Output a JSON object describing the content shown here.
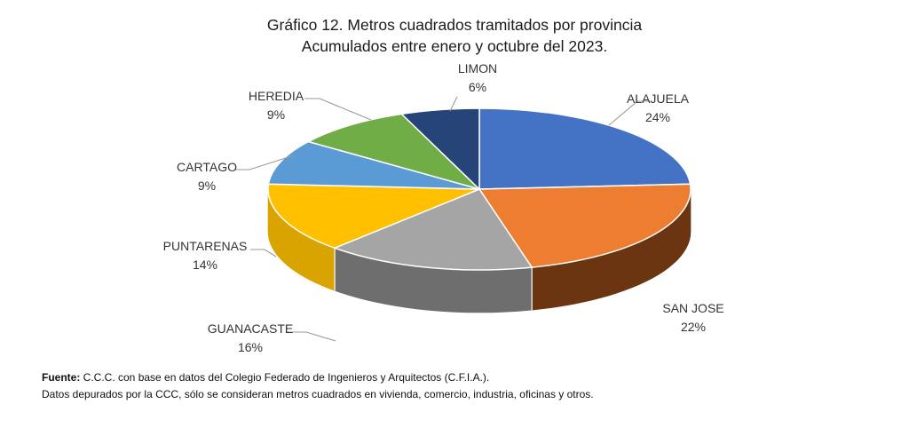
{
  "chart_data": {
    "type": "pie",
    "title": "Gráfico 12. Metros cuadrados tramitados por provincia",
    "subtitle": "Acumulados entre enero y octubre del 2023.",
    "slices": [
      {
        "label": "ALAJUELA",
        "value": 24,
        "display": "24%",
        "color": "#4472C4",
        "side": "#2E5491"
      },
      {
        "label": "SAN JOSE",
        "value": 22,
        "display": "22%",
        "color": "#ED7D31",
        "side": "#6B3512"
      },
      {
        "label": "GUANACASTE",
        "value": 16,
        "display": "16%",
        "color": "#A5A5A5",
        "side": "#6E6E6E"
      },
      {
        "label": "PUNTARENAS",
        "value": 14,
        "display": "14%",
        "color": "#FFC000",
        "side": "#D9A400"
      },
      {
        "label": "CARTAGO",
        "value": 9,
        "display": "9%",
        "color": "#5B9BD5",
        "side": "#3F73A3"
      },
      {
        "label": "HEREDIA",
        "value": 9,
        "display": "9%",
        "color": "#70AD47",
        "side": "#4E8030"
      },
      {
        "label": "LIMON",
        "value": 6,
        "display": "6%",
        "color": "#264478",
        "side": "#1A2F55"
      }
    ]
  },
  "source": {
    "label": "Fuente:",
    "text": " C.C.C. con base en datos del Colegio Federado de Ingenieros y Arquitectos (C.F.I.A.).",
    "note": "Datos depurados por la CCC, sólo se consideran metros cuadrados en vivienda, comercio, industria, oficinas y otros."
  }
}
